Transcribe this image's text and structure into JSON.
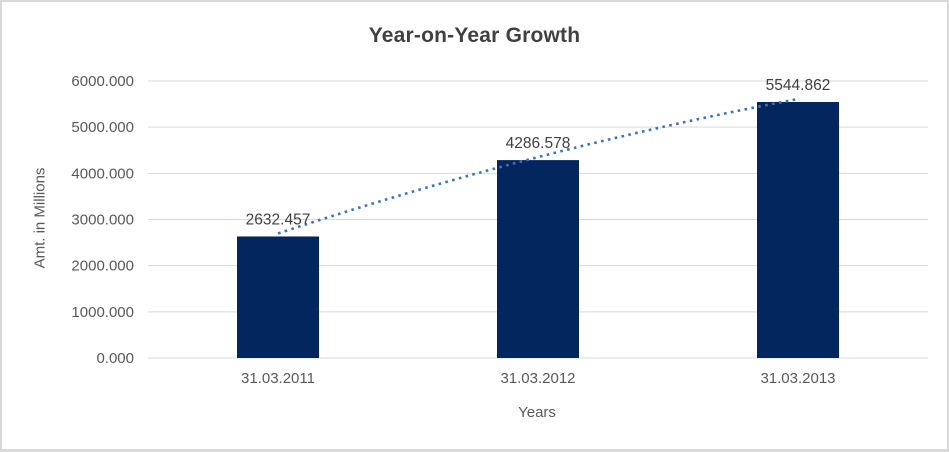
{
  "chart_data": {
    "type": "bar",
    "title": "Year-on-Year Growth",
    "xlabel": "Years",
    "ylabel": "Amt. in Millions",
    "categories": [
      "31.03.2011",
      "31.03.2012",
      "31.03.2013"
    ],
    "values": [
      2632.457,
      4286.578,
      5544.862
    ],
    "data_labels": [
      "2632.457",
      "4286.578",
      "5544.862"
    ],
    "y_tick_labels": [
      "0.000",
      "1000.000",
      "2000.000",
      "3000.000",
      "4000.000",
      "5000.000",
      "6000.000"
    ],
    "ylim": [
      0,
      6000
    ],
    "ytick_step": 1000,
    "grid": true,
    "legend": "none",
    "bar_color": "#04265e",
    "trendline": {
      "type": "dotted",
      "color": "#3a74b9"
    },
    "title_color": "#404040",
    "axis_text_color": "#595959",
    "data_label_color": "#404040",
    "gridline_color": "#d9d9d9",
    "frame_border_color": "#d9d9d9",
    "background": "#ffffff"
  }
}
